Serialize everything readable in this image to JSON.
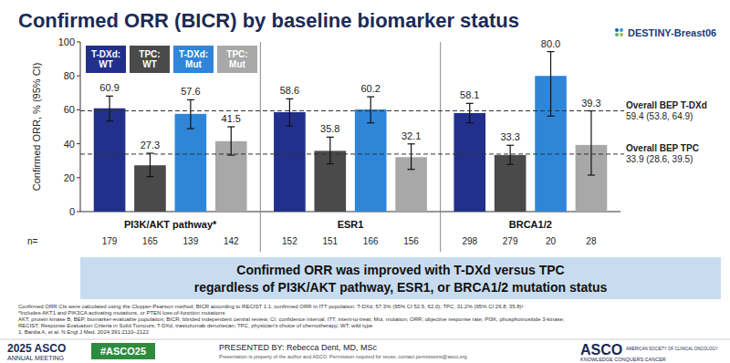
{
  "chart_data": {
    "type": "bar",
    "title": "Confirmed ORR (BICR) by baseline biomarker status",
    "y_label": "Confirmed ORR, % (95% CI)",
    "categories": [
      "PI3K/AKT pathway*",
      "ESR1",
      "BRCA1/2"
    ],
    "series": [
      {
        "name": "T-DXd: WT",
        "color": "#22308c",
        "values": [
          60.9,
          58.6,
          58.1
        ],
        "value_labels": [
          "60.9",
          "58.6",
          "58.1"
        ],
        "ci_low": [
          53.4,
          50.4,
          52.3
        ],
        "ci_high": [
          68.1,
          66.5,
          63.8
        ],
        "n": [
          179,
          152,
          298
        ]
      },
      {
        "name": "TPC: WT",
        "color": "#4a4a4a",
        "values": [
          27.3,
          35.8,
          33.3
        ],
        "value_labels": [
          "27.3",
          "35.8",
          "33.3"
        ],
        "ci_low": [
          20.6,
          28.2,
          27.8
        ],
        "ci_high": [
          34.4,
          43.9,
          39.1
        ],
        "n": [
          165,
          151,
          279
        ]
      },
      {
        "name": "T-DXd: Mut",
        "color": "#2f86d8",
        "values": [
          57.6,
          60.2,
          80.0
        ],
        "value_labels": [
          "57.6",
          "60.2",
          "80.0"
        ],
        "ci_low": [
          48.9,
          52.3,
          56.3
        ],
        "ci_high": [
          65.9,
          67.7,
          94.3
        ],
        "n": [
          139,
          166,
          20
        ]
      },
      {
        "name": "TPC: Mut",
        "color": "#a8a8a8",
        "values": [
          41.5,
          32.1,
          39.3
        ],
        "value_labels": [
          "41.5",
          "32.1",
          "39.3"
        ],
        "ci_low": [
          33.3,
          24.9,
          21.5
        ],
        "ci_high": [
          50.0,
          39.9,
          59.4
        ],
        "n": [
          142,
          156,
          28
        ]
      }
    ],
    "n_label": "n=",
    "ylim": [
      0,
      100
    ],
    "yticks": [
      0,
      20,
      40,
      60,
      80,
      100
    ],
    "grid": false,
    "data_labels": true,
    "legend": "upper left",
    "reference_lines": [
      {
        "name": "Overall BEP T-DXd",
        "value": 59.4,
        "label": "59.4 (53.8, 64.9)"
      },
      {
        "name": "Overall BEP TPC",
        "value": 33.9,
        "label": "33.9 (28.6, 39.5)"
      }
    ]
  },
  "slide": {
    "logo": "DESTINY-Breast06",
    "conclusion": [
      "Confirmed ORR was improved with T-DXd versus TPC",
      "regardless of PI3K/AKT pathway, ESR1, or BRCA1/2 mutation status"
    ],
    "footnotes": [
      "Confirmed ORR CIs were calculated using the Clopper-Pearson method; BICR according to RECIST 1.1; confirmed ORR in ITT population: T-DXd, 57.3% (95% CI 52.5, 62.0); TPC, 31.2% (95% CI 26.8, 35.8)¹",
      "*Includes AKT1 and PIK3CA activating mutations, or PTEN loss-of-function mutations",
      "AKT, protein kinase B; BEP, biomarker-evaluable population; BICR, blinded independent central review; CI, confidence interval; ITT, intent-to-treat; Mut, mutation; ORR, objective response rate; PI3K, phosphoinositide 3-kinase;",
      "RECIST, Response Evaluation Criteria in Solid Tumours; T-DXd, trastuzumab deruxtecan; TPC, physician's choice of chemotherapy; WT, wild type",
      "1. Bardia A, et al. N Engl J Med. 2024;391:2110–2122"
    ],
    "footer": {
      "meeting": "2025 ASCO",
      "meeting_sub": "ANNUAL MEETING",
      "hashtag": "#ASCO25",
      "presenter": "PRESENTED BY: Rebecca Dent, MD, MSc",
      "note": "Presentation is property of the author and ASCO. Permission required for reuse; contact permissions@asco.org.",
      "org": "ASCO",
      "org_sub": "AMERICAN SOCIETY OF CLINICAL ONCOLOGY",
      "tagline": "KNOWLEDGE CONQUERS CANCER"
    }
  }
}
